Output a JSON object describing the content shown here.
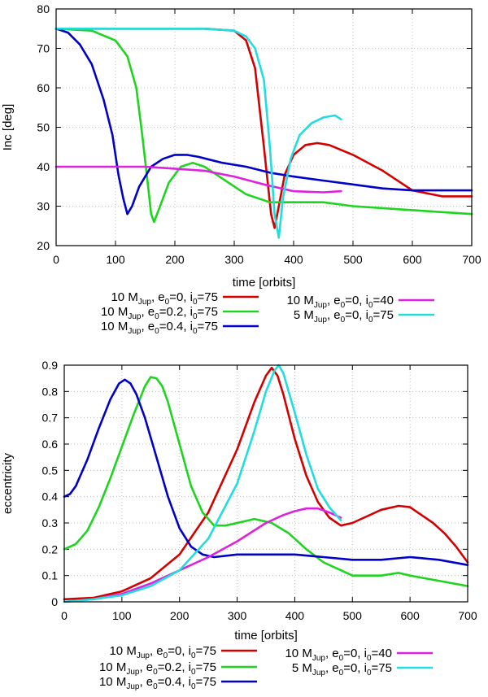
{
  "chart_data": [
    {
      "type": "line",
      "id": "inc",
      "xlabel": "time [orbits]",
      "ylabel": "Inc [deg]",
      "xlim": [
        0,
        700
      ],
      "ylim": [
        20,
        80
      ],
      "xticks": [
        "0",
        "100",
        "200",
        "300",
        "400",
        "500",
        "600",
        "700"
      ],
      "yticks": [
        "20",
        "30",
        "40",
        "50",
        "60",
        "70",
        "80"
      ],
      "grid": true,
      "legend_position": "bottom",
      "series": [
        {
          "key": "s1",
          "color": "#d40000",
          "label": {
            "pre": "10 M",
            "sub1": "Jup",
            "mid1": ", e",
            "sub2": "0",
            "mid2": "=0, i",
            "sub3": "0",
            "post": "=75"
          },
          "x": [
            0,
            250,
            300,
            320,
            335,
            350,
            362,
            368,
            375,
            385,
            400,
            420,
            440,
            460,
            500,
            550,
            600,
            650,
            700
          ],
          "y": [
            75,
            75,
            74.5,
            72,
            65,
            45,
            28,
            24.5,
            30,
            38,
            43,
            45.5,
            46,
            45.5,
            43,
            39,
            34,
            32.5,
            32.5
          ]
        },
        {
          "key": "s2",
          "color": "#1fd41f",
          "label": {
            "pre": "10 M",
            "sub1": "Jup",
            "mid1": ", e",
            "sub2": "0",
            "mid2": "=0.2, i",
            "sub3": "0",
            "post": "=75"
          },
          "x": [
            0,
            60,
            100,
            120,
            135,
            145,
            155,
            160,
            165,
            175,
            190,
            210,
            230,
            250,
            280,
            320,
            360,
            400,
            450,
            500,
            550,
            600,
            650,
            700
          ],
          "y": [
            75,
            74.5,
            72,
            68,
            60,
            48,
            35,
            28,
            26,
            30,
            36,
            40,
            41,
            40,
            37,
            33,
            31,
            31,
            31,
            30,
            29.5,
            29,
            28.5,
            28
          ]
        },
        {
          "key": "s3",
          "color": "#0000c8",
          "label": {
            "pre": "10 M",
            "sub1": "Jup",
            "mid1": ", e",
            "sub2": "0",
            "mid2": "=0.4, i",
            "sub3": "0",
            "post": "=75"
          },
          "x": [
            0,
            20,
            40,
            60,
            80,
            95,
            105,
            113,
            120,
            128,
            140,
            160,
            180,
            200,
            220,
            240,
            280,
            320,
            360,
            400,
            450,
            500,
            550,
            600,
            650,
            700
          ],
          "y": [
            75,
            74,
            71,
            66,
            57,
            48,
            38,
            32,
            28,
            30,
            35,
            40,
            42,
            43,
            43,
            42.5,
            41,
            40,
            38.5,
            37.5,
            36.5,
            35.5,
            34.5,
            34,
            34,
            34
          ]
        },
        {
          "key": "s4",
          "color": "#dd22dd",
          "label": {
            "pre": "10 M",
            "sub1": "Jup",
            "mid1": ", e",
            "sub2": "0",
            "mid2": "=0, i",
            "sub3": "0",
            "post": "=40"
          },
          "x": [
            0,
            50,
            100,
            150,
            200,
            250,
            300,
            350,
            400,
            450,
            480
          ],
          "y": [
            40,
            40,
            40,
            40,
            39.5,
            39,
            37.5,
            35.5,
            33.8,
            33.5,
            33.8
          ]
        },
        {
          "key": "s5",
          "color": "#22dddd",
          "label": {
            "pre": "5 M",
            "sub1": "Jup",
            "mid1": ", e",
            "sub2": "0",
            "mid2": "=0, i",
            "sub3": "0",
            "post": "=75"
          },
          "x": [
            0,
            250,
            300,
            320,
            335,
            350,
            360,
            368,
            375,
            382,
            395,
            410,
            430,
            450,
            470,
            480
          ],
          "y": [
            75,
            75,
            74.5,
            73,
            70,
            62,
            45,
            28,
            22,
            32,
            42,
            48,
            51,
            52.5,
            53,
            52
          ]
        }
      ]
    },
    {
      "type": "line",
      "id": "ecc",
      "xlabel": "time [orbits]",
      "ylabel": "eccentricity",
      "xlim": [
        0,
        700
      ],
      "ylim": [
        0,
        0.9
      ],
      "xticks": [
        "0",
        "100",
        "200",
        "300",
        "400",
        "500",
        "600",
        "700"
      ],
      "yticks": [
        "0",
        "0.1",
        "0.2",
        "0.3",
        "0.4",
        "0.5",
        "0.6",
        "0.7",
        "0.8",
        "0.9"
      ],
      "grid": true,
      "legend_position": "bottom",
      "series": [
        {
          "key": "s1",
          "color": "#d40000",
          "label": {
            "pre": "10 M",
            "sub1": "Jup",
            "mid1": ", e",
            "sub2": "0",
            "mid2": "=0, i",
            "sub3": "0",
            "post": "=75"
          },
          "x": [
            0,
            50,
            100,
            150,
            200,
            250,
            300,
            330,
            350,
            360,
            370,
            380,
            400,
            420,
            440,
            460,
            480,
            500,
            520,
            550,
            580,
            600,
            620,
            640,
            660,
            680,
            700
          ],
          "y": [
            0.01,
            0.015,
            0.04,
            0.09,
            0.18,
            0.34,
            0.58,
            0.76,
            0.86,
            0.89,
            0.86,
            0.79,
            0.62,
            0.48,
            0.38,
            0.32,
            0.29,
            0.3,
            0.32,
            0.35,
            0.365,
            0.36,
            0.33,
            0.3,
            0.26,
            0.21,
            0.15
          ]
        },
        {
          "key": "s2",
          "color": "#1fd41f",
          "label": {
            "pre": "10 M",
            "sub1": "Jup",
            "mid1": ", e",
            "sub2": "0",
            "mid2": "=0.2, i",
            "sub3": "0",
            "post": "=75"
          },
          "x": [
            0,
            20,
            40,
            60,
            80,
            100,
            120,
            140,
            150,
            160,
            170,
            180,
            200,
            220,
            240,
            260,
            280,
            300,
            330,
            360,
            390,
            420,
            450,
            480,
            500,
            550,
            580,
            600,
            650,
            700
          ],
          "y": [
            0.2,
            0.22,
            0.27,
            0.36,
            0.47,
            0.59,
            0.71,
            0.82,
            0.855,
            0.85,
            0.82,
            0.76,
            0.6,
            0.44,
            0.34,
            0.29,
            0.29,
            0.3,
            0.315,
            0.3,
            0.26,
            0.2,
            0.15,
            0.12,
            0.1,
            0.1,
            0.11,
            0.1,
            0.08,
            0.06
          ]
        },
        {
          "key": "s3",
          "color": "#0000c8",
          "label": {
            "pre": "10 M",
            "sub1": "Jup",
            "mid1": ", e",
            "sub2": "0",
            "mid2": "=0.4, i",
            "sub3": "0",
            "post": "=75"
          },
          "x": [
            0,
            10,
            20,
            40,
            60,
            80,
            95,
            105,
            115,
            125,
            140,
            160,
            180,
            200,
            220,
            240,
            260,
            300,
            350,
            400,
            450,
            500,
            550,
            600,
            650,
            700
          ],
          "y": [
            0.4,
            0.41,
            0.44,
            0.54,
            0.66,
            0.77,
            0.83,
            0.845,
            0.83,
            0.79,
            0.7,
            0.55,
            0.4,
            0.28,
            0.21,
            0.18,
            0.17,
            0.18,
            0.18,
            0.18,
            0.17,
            0.16,
            0.16,
            0.17,
            0.16,
            0.14
          ]
        },
        {
          "key": "s4",
          "color": "#dd22dd",
          "label": {
            "pre": "10 M",
            "sub1": "Jup",
            "mid1": ", e",
            "sub2": "0",
            "mid2": "=0, i",
            "sub3": "0",
            "post": "=40"
          },
          "x": [
            0,
            50,
            100,
            150,
            200,
            250,
            300,
            350,
            380,
            400,
            420,
            440,
            460,
            480
          ],
          "y": [
            0.0,
            0.01,
            0.03,
            0.07,
            0.12,
            0.17,
            0.23,
            0.3,
            0.33,
            0.345,
            0.355,
            0.355,
            0.34,
            0.32
          ]
        },
        {
          "key": "s5",
          "color": "#22dddd",
          "label": {
            "pre": "5 M",
            "sub1": "Jup",
            "mid1": ", e",
            "sub2": "0",
            "mid2": "=0, i",
            "sub3": "0",
            "post": "=75"
          },
          "x": [
            0,
            50,
            100,
            150,
            200,
            250,
            300,
            330,
            350,
            365,
            372,
            380,
            400,
            420,
            440,
            460,
            480
          ],
          "y": [
            0.0,
            0.01,
            0.025,
            0.06,
            0.12,
            0.24,
            0.45,
            0.65,
            0.8,
            0.88,
            0.9,
            0.87,
            0.72,
            0.56,
            0.43,
            0.36,
            0.31
          ]
        }
      ]
    }
  ]
}
